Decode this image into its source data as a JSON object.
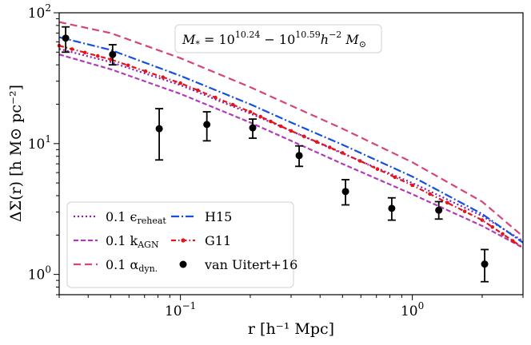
{
  "chart_data": {
    "type": "line",
    "title": "",
    "annotation": "M_* = 10^{10.24} − 10^{10.59} h^{−2} M_⊙",
    "annotation_parts": {
      "lhs": "M",
      "lhs_sub": "*",
      "eq": " = 10",
      "exp1": "10.24",
      "mid": " − 10",
      "exp2": "10.59",
      "h": "h",
      "hexp": "−2",
      "m": " M",
      "msub": "⊙"
    },
    "xlabel": "r [h⁻¹ Mpc]",
    "ylabel": "ΔΣ(r) [h M⊙ pc⁻²]",
    "xscale": "log",
    "yscale": "log",
    "xlim": [
      0.03,
      3.0
    ],
    "ylim": [
      0.7,
      100
    ],
    "x_ticks": [
      {
        "value": 0.1,
        "base": "10",
        "exp": "−1"
      },
      {
        "value": 1,
        "base": "10",
        "exp": "0"
      }
    ],
    "y_ticks": [
      {
        "value": 1,
        "base": "10",
        "exp": "0"
      },
      {
        "value": 10,
        "base": "10",
        "exp": "1"
      },
      {
        "value": 100,
        "base": "10",
        "exp": "2"
      }
    ],
    "legend_position": "lower-left",
    "series": [
      {
        "name": "0.1 ε_reheat",
        "label_main": "0.1 ϵ",
        "label_sub": "reheat",
        "style": "dotted",
        "color": "#8b1db0",
        "x": [
          0.03,
          0.05,
          0.1,
          0.2,
          0.3,
          0.5,
          1.0,
          2.0,
          3.0
        ],
        "y": [
          53,
          42,
          28,
          17,
          12.5,
          8.4,
          5.0,
          2.8,
          1.8
        ]
      },
      {
        "name": "0.1 k_AGN",
        "label_main": "0.1 k",
        "label_sub": "AGN",
        "style": "dashed",
        "color": "#b03aba",
        "x": [
          0.03,
          0.05,
          0.1,
          0.2,
          0.3,
          0.5,
          1.0,
          2.0,
          3.0
        ],
        "y": [
          48,
          37,
          24,
          14.5,
          10.5,
          7.0,
          4.1,
          2.35,
          1.6
        ]
      },
      {
        "name": "0.1 α_dyn.",
        "label_main": "0.1 α",
        "label_sub": "dyn.",
        "style": "longdash",
        "color": "#d6457a",
        "x": [
          0.03,
          0.05,
          0.1,
          0.2,
          0.3,
          0.5,
          1.0,
          2.0,
          3.0
        ],
        "y": [
          85,
          70,
          45,
          27,
          19.5,
          13,
          7.2,
          3.6,
          1.95
        ]
      },
      {
        "name": "H15",
        "label_main": "H15",
        "label_sub": "",
        "style": "dashdot",
        "color": "#1450e0",
        "x": [
          0.03,
          0.05,
          0.1,
          0.2,
          0.3,
          0.5,
          1.0,
          2.0,
          3.0
        ],
        "y": [
          65,
          52,
          33,
          20,
          14.5,
          9.8,
          5.6,
          2.9,
          1.75
        ]
      },
      {
        "name": "G11",
        "label_main": "G11",
        "label_sub": "",
        "style": "dash-dot-marker",
        "color": "#e3141a",
        "x": [
          0.03,
          0.05,
          0.1,
          0.2,
          0.3,
          0.5,
          1.0,
          2.0,
          3.0
        ],
        "y": [
          56,
          44,
          29,
          17.5,
          12.5,
          8.5,
          4.8,
          2.6,
          1.6
        ]
      }
    ],
    "points": {
      "name": "van Uitert+16",
      "label_main": "van Uitert+16",
      "color": "#000000",
      "x": [
        0.032,
        0.051,
        0.081,
        0.13,
        0.205,
        0.325,
        0.515,
        0.815,
        1.3,
        2.05
      ],
      "y": [
        64,
        48,
        13,
        14,
        13.2,
        8.1,
        4.3,
        3.2,
        3.1,
        1.2
      ],
      "yerr_low": [
        50,
        40,
        7.5,
        10.5,
        11.0,
        6.7,
        3.4,
        2.6,
        2.65,
        0.88
      ],
      "yerr_high": [
        78,
        57,
        18.5,
        17.5,
        15.4,
        9.6,
        5.3,
        3.85,
        3.6,
        1.55
      ]
    }
  }
}
